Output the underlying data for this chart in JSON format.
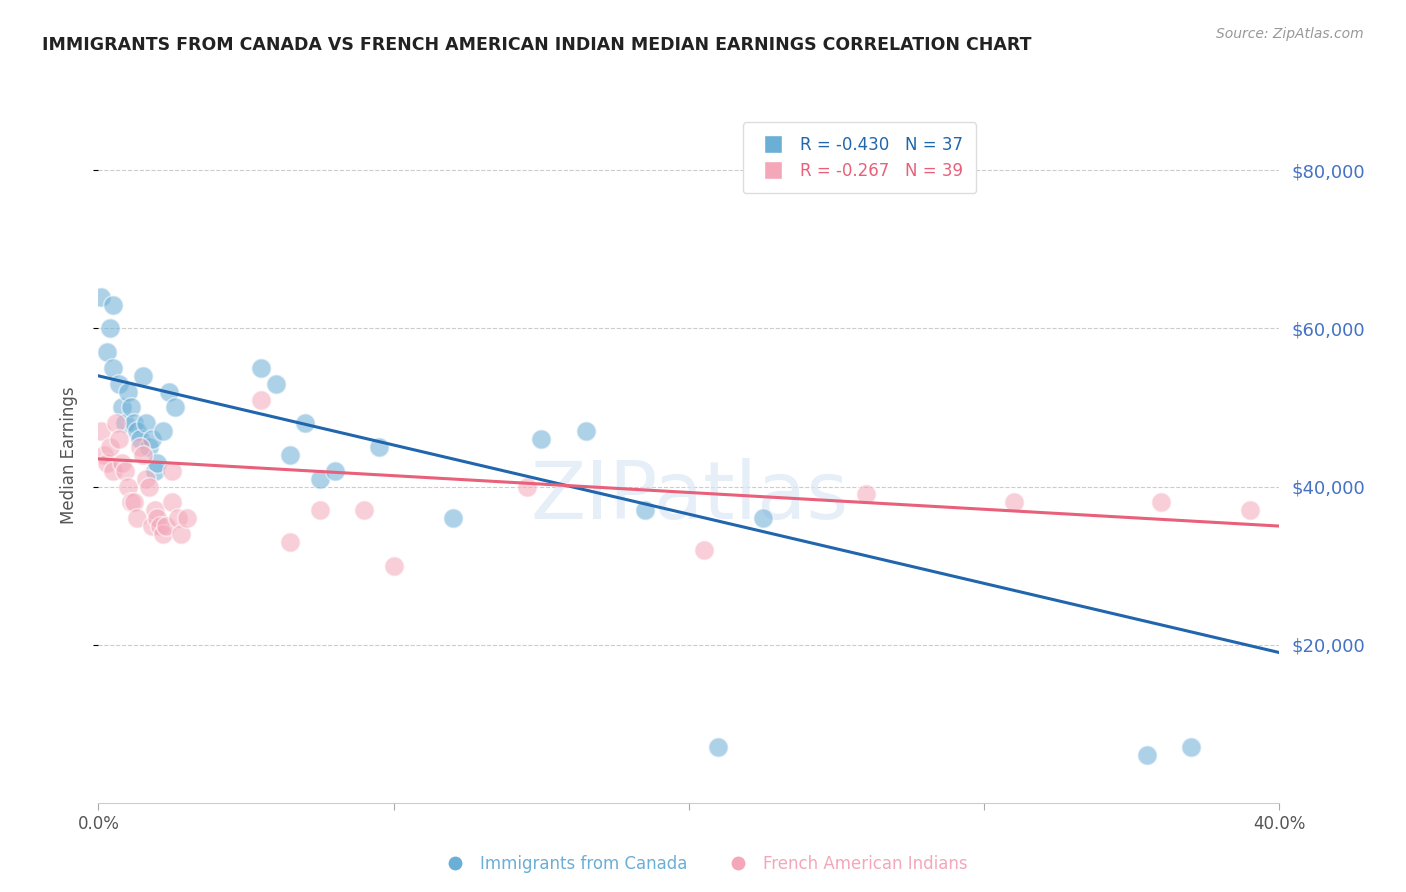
{
  "title": "IMMIGRANTS FROM CANADA VS FRENCH AMERICAN INDIAN MEDIAN EARNINGS CORRELATION CHART",
  "source": "Source: ZipAtlas.com",
  "ylabel": "Median Earnings",
  "watermark": "ZIPatlas",
  "legend": [
    {
      "label": "R = -0.430   N = 37",
      "color": "#6baed6"
    },
    {
      "label": "R = -0.267   N = 39",
      "color": "#fa9fb5"
    }
  ],
  "legend_names": [
    "Immigrants from Canada",
    "French American Indians"
  ],
  "blue_color": "#6baed6",
  "pink_color": "#f4a7b9",
  "blue_line_color": "#2166ac",
  "pink_line_color": "#e8607a",
  "title_color": "#222222",
  "right_axis_color": "#4472c4",
  "ytick_labels": [
    "$80,000",
    "$60,000",
    "$40,000",
    "$20,000"
  ],
  "ytick_values": [
    80000,
    60000,
    40000,
    20000
  ],
  "xmin": 0.0,
  "xmax": 0.4,
  "ymin": 0,
  "ymax": 88000,
  "blue_scatter_x": [
    0.001,
    0.003,
    0.004,
    0.005,
    0.005,
    0.007,
    0.008,
    0.009,
    0.01,
    0.011,
    0.012,
    0.013,
    0.014,
    0.015,
    0.016,
    0.017,
    0.018,
    0.019,
    0.02,
    0.022,
    0.024,
    0.026,
    0.055,
    0.06,
    0.065,
    0.07,
    0.075,
    0.08,
    0.095,
    0.12,
    0.15,
    0.165,
    0.21,
    0.225,
    0.185,
    0.355,
    0.37
  ],
  "blue_scatter_y": [
    64000,
    57000,
    60000,
    55000,
    63000,
    53000,
    50000,
    48000,
    52000,
    50000,
    48000,
    47000,
    46000,
    54000,
    48000,
    45000,
    46000,
    42000,
    43000,
    47000,
    52000,
    50000,
    55000,
    53000,
    44000,
    48000,
    41000,
    42000,
    45000,
    36000,
    46000,
    47000,
    7000,
    36000,
    37000,
    6000,
    7000
  ],
  "pink_scatter_x": [
    0.001,
    0.002,
    0.003,
    0.004,
    0.005,
    0.006,
    0.007,
    0.008,
    0.009,
    0.01,
    0.011,
    0.012,
    0.013,
    0.014,
    0.015,
    0.016,
    0.017,
    0.018,
    0.019,
    0.02,
    0.021,
    0.022,
    0.023,
    0.025,
    0.025,
    0.027,
    0.028,
    0.03,
    0.055,
    0.065,
    0.075,
    0.09,
    0.1,
    0.145,
    0.205,
    0.26,
    0.31,
    0.36,
    0.39
  ],
  "pink_scatter_y": [
    47000,
    44000,
    43000,
    45000,
    42000,
    48000,
    46000,
    43000,
    42000,
    40000,
    38000,
    38000,
    36000,
    45000,
    44000,
    41000,
    40000,
    35000,
    37000,
    36000,
    35000,
    34000,
    35000,
    42000,
    38000,
    36000,
    34000,
    36000,
    51000,
    33000,
    37000,
    37000,
    30000,
    40000,
    32000,
    39000,
    38000,
    38000,
    37000
  ],
  "blue_trendline_x": [
    0.0,
    0.4
  ],
  "blue_trendline_y": [
    54000,
    19000
  ],
  "pink_trendline_x": [
    0.0,
    0.4
  ],
  "pink_trendline_y": [
    43500,
    35000
  ]
}
